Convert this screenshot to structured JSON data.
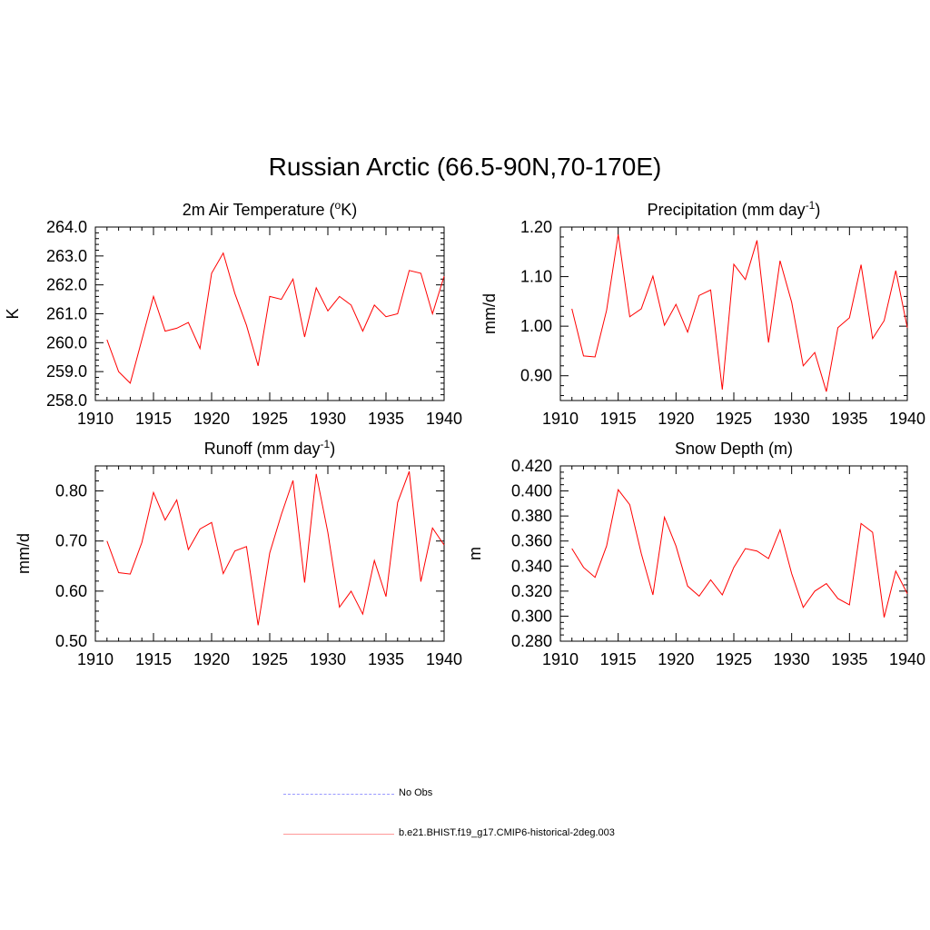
{
  "title": "Russian Arctic (66.5-90N,70-170E)",
  "colors": {
    "model": "#ff0000",
    "obs": "#9999ff"
  },
  "legend": [
    {
      "label": "No Obs",
      "style": "dashed",
      "color": "#9999ff"
    },
    {
      "label": "b.e21.BHIST.f19_g17.CMIP6-historical-2deg.003",
      "style": "solid",
      "color": "#ff0000"
    }
  ],
  "chart_data": [
    {
      "type": "line",
      "title": "2m Air Temperature",
      "title_unit": "K",
      "title_sup": "o",
      "ylabel": "K",
      "xlim": [
        1910,
        1940
      ],
      "xticks": [
        1910,
        1915,
        1920,
        1925,
        1930,
        1935,
        1940
      ],
      "ylim": [
        258.0,
        264.0
      ],
      "yticks": [
        258.0,
        259.0,
        260.0,
        261.0,
        262.0,
        263.0,
        264.0
      ],
      "ytick_labels": [
        "258.0",
        "259.0",
        "260.0",
        "261.0",
        "262.0",
        "263.0",
        "264.0"
      ],
      "yminor": 5,
      "x": [
        1911,
        1912,
        1913,
        1914,
        1915,
        1916,
        1917,
        1918,
        1919,
        1920,
        1921,
        1922,
        1923,
        1924,
        1925,
        1926,
        1927,
        1928,
        1929,
        1930,
        1931,
        1932,
        1933,
        1934,
        1935,
        1936,
        1937,
        1938,
        1939,
        1940
      ],
      "series": [
        {
          "name": "b.e21.BHIST.f19_g17.CMIP6-historical-2deg.003",
          "values": [
            260.1,
            259.0,
            258.6,
            260.1,
            261.6,
            260.4,
            260.5,
            260.7,
            259.8,
            262.4,
            263.1,
            261.7,
            260.6,
            259.2,
            261.6,
            261.5,
            262.2,
            260.2,
            261.9,
            261.1,
            261.6,
            261.3,
            260.4,
            261.3,
            260.9,
            261.0,
            262.5,
            262.4,
            261.0,
            262.3
          ]
        }
      ]
    },
    {
      "type": "line",
      "title": "Precipitation (mm day",
      "title_sup": "-1",
      "title_tail": ")",
      "ylabel": "mm/d",
      "xlim": [
        1910,
        1940
      ],
      "xticks": [
        1910,
        1915,
        1920,
        1925,
        1930,
        1935,
        1940
      ],
      "ylim": [
        0.85,
        1.2
      ],
      "yticks": [
        0.9,
        1.0,
        1.1,
        1.2
      ],
      "ytick_labels": [
        "0.90",
        "1.00",
        "1.10",
        "1.20"
      ],
      "yminor": 5,
      "x": [
        1911,
        1912,
        1913,
        1914,
        1915,
        1916,
        1917,
        1918,
        1919,
        1920,
        1921,
        1922,
        1923,
        1924,
        1925,
        1926,
        1927,
        1928,
        1929,
        1930,
        1931,
        1932,
        1933,
        1934,
        1935,
        1936,
        1937,
        1938,
        1939,
        1940
      ],
      "series": [
        {
          "name": "b.e21.BHIST.f19_g17.CMIP6-historical-2deg.003",
          "values": [
            1.035,
            0.94,
            0.938,
            1.032,
            1.185,
            1.019,
            1.035,
            1.101,
            1.002,
            1.044,
            0.988,
            1.062,
            1.073,
            0.872,
            1.125,
            1.094,
            1.173,
            0.967,
            1.132,
            1.048,
            0.92,
            0.947,
            0.868,
            0.997,
            1.017,
            1.124,
            0.975,
            1.011,
            1.112,
            0.997
          ]
        }
      ]
    },
    {
      "type": "line",
      "title": "Runoff (mm day",
      "title_sup": "-1",
      "title_tail": ")",
      "ylabel": "mm/d",
      "xlim": [
        1910,
        1940
      ],
      "xticks": [
        1910,
        1915,
        1920,
        1925,
        1930,
        1935,
        1940
      ],
      "ylim": [
        0.5,
        0.85
      ],
      "yticks": [
        0.5,
        0.6,
        0.7,
        0.8
      ],
      "ytick_labels": [
        "0.50",
        "0.60",
        "0.70",
        "0.80"
      ],
      "yminor": 5,
      "x": [
        1911,
        1912,
        1913,
        1914,
        1915,
        1916,
        1917,
        1918,
        1919,
        1920,
        1921,
        1922,
        1923,
        1924,
        1925,
        1926,
        1927,
        1928,
        1929,
        1930,
        1931,
        1932,
        1933,
        1934,
        1935,
        1936,
        1937,
        1938,
        1939,
        1940
      ],
      "series": [
        {
          "name": "b.e21.BHIST.f19_g17.CMIP6-historical-2deg.003",
          "values": [
            0.7,
            0.637,
            0.634,
            0.697,
            0.797,
            0.742,
            0.782,
            0.683,
            0.724,
            0.737,
            0.635,
            0.68,
            0.689,
            0.532,
            0.676,
            0.753,
            0.821,
            0.617,
            0.834,
            0.717,
            0.568,
            0.6,
            0.554,
            0.661,
            0.589,
            0.777,
            0.839,
            0.619,
            0.726,
            0.692
          ]
        }
      ]
    },
    {
      "type": "line",
      "title": "Snow Depth (m)",
      "ylabel": "m",
      "xlim": [
        1910,
        1940
      ],
      "xticks": [
        1910,
        1915,
        1920,
        1925,
        1930,
        1935,
        1940
      ],
      "ylim": [
        0.28,
        0.42
      ],
      "yticks": [
        0.28,
        0.3,
        0.32,
        0.34,
        0.36,
        0.38,
        0.4,
        0.42
      ],
      "ytick_labels": [
        "0.280",
        "0.300",
        "0.320",
        "0.340",
        "0.360",
        "0.380",
        "0.400",
        "0.420"
      ],
      "yminor": 4,
      "x": [
        1911,
        1912,
        1913,
        1914,
        1915,
        1916,
        1917,
        1918,
        1919,
        1920,
        1921,
        1922,
        1923,
        1924,
        1925,
        1926,
        1927,
        1928,
        1929,
        1930,
        1931,
        1932,
        1933,
        1934,
        1935,
        1936,
        1937,
        1938,
        1939,
        1940
      ],
      "series": [
        {
          "name": "b.e21.BHIST.f19_g17.CMIP6-historical-2deg.003",
          "values": [
            0.354,
            0.339,
            0.331,
            0.356,
            0.401,
            0.389,
            0.35,
            0.317,
            0.379,
            0.356,
            0.324,
            0.316,
            0.329,
            0.317,
            0.339,
            0.354,
            0.352,
            0.346,
            0.369,
            0.334,
            0.307,
            0.32,
            0.326,
            0.314,
            0.309,
            0.374,
            0.367,
            0.299,
            0.336,
            0.318
          ]
        }
      ]
    }
  ]
}
